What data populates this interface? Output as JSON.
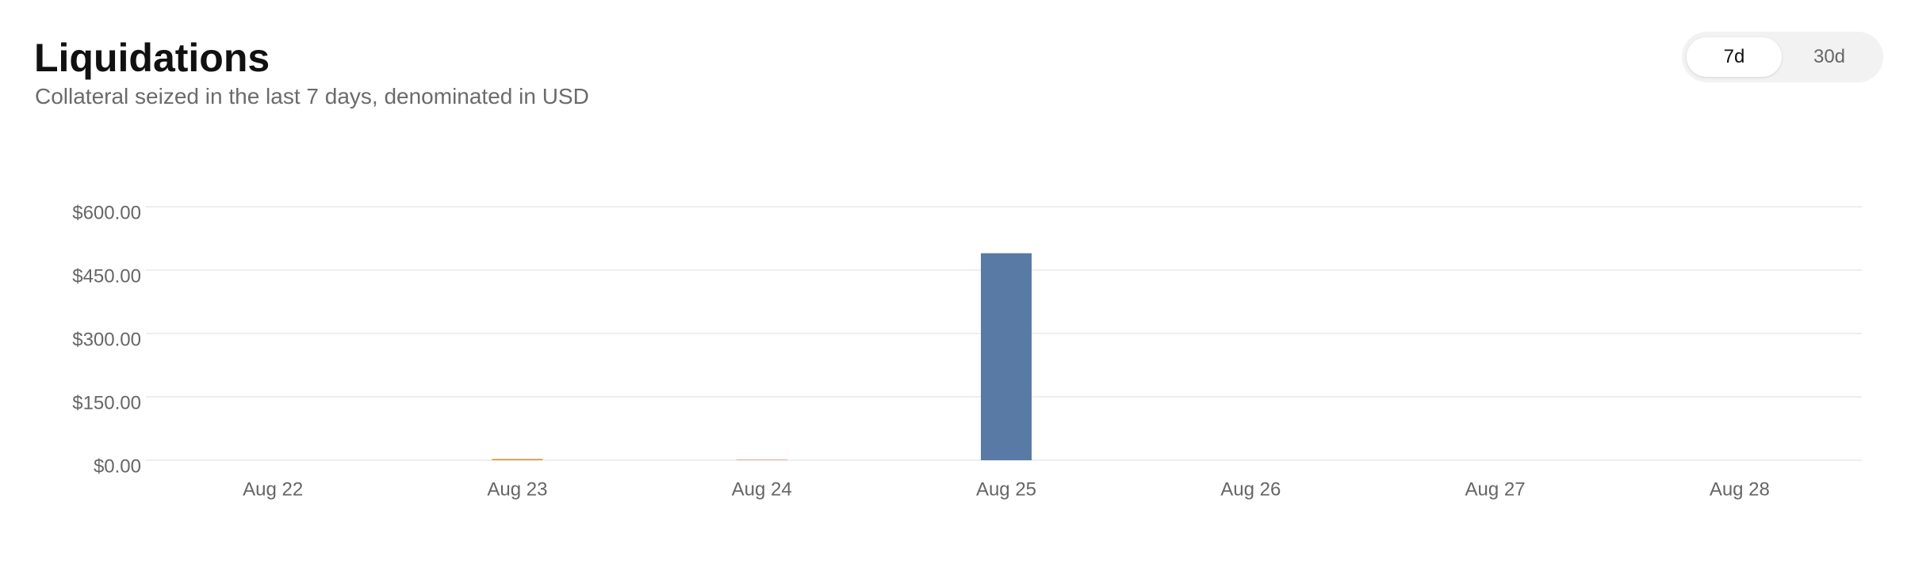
{
  "chart_data": {
    "type": "bar",
    "title": "Liquidations",
    "subtitle": "Collateral seized in the last 7 days, denominated in USD",
    "categories": [
      "Aug 22",
      "Aug 23",
      "Aug 24",
      "Aug 25",
      "Aug 26",
      "Aug 27",
      "Aug 28"
    ],
    "values": [
      0,
      3,
      1,
      490,
      0,
      0,
      0
    ],
    "colors": [
      "#5a7aa6",
      "#e0913a",
      "#e06a5a",
      "#5a7aa6",
      "#5a7aa6",
      "#5a7aa6",
      "#5a7aa6"
    ],
    "ylim": [
      0,
      600
    ],
    "yticks": [
      {
        "value": 0,
        "label": "$0.00"
      },
      {
        "value": 150,
        "label": "$150.00"
      },
      {
        "value": 300,
        "label": "$300.00"
      },
      {
        "value": 450,
        "label": "$450.00"
      },
      {
        "value": 600,
        "label": "$600.00"
      }
    ],
    "grid": true
  },
  "controls": {
    "options": [
      "7d",
      "30d"
    ],
    "selected": 0
  }
}
